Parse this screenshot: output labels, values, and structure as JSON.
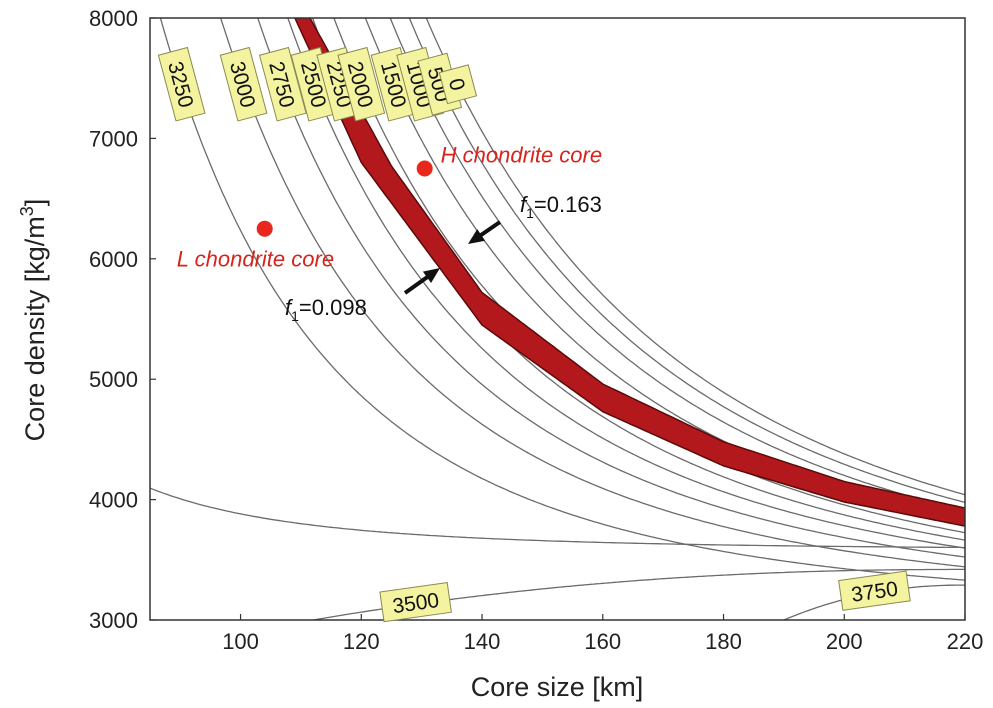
{
  "chart_data": {
    "type": "line",
    "title": "",
    "xlabel": "Core size [km]",
    "ylabel_main": "Core density [kg/m",
    "ylabel_sup": "3",
    "ylabel_end": "]",
    "xlim": [
      85,
      220
    ],
    "ylim": [
      3000,
      8000
    ],
    "xticks": [
      "100",
      "120",
      "140",
      "160",
      "180",
      "200",
      "220"
    ],
    "yticks": [
      "3000",
      "4000",
      "5000",
      "6000",
      "7000",
      "8000"
    ],
    "contours_upper": [
      {
        "label": "3250",
        "d0": 5.6
      },
      {
        "label": "3000",
        "d0": 7.85
      },
      {
        "label": "2750",
        "d0": 9.5
      },
      {
        "label": "2500",
        "d0": 11.0
      },
      {
        "label": "2250",
        "d0": 12.35
      },
      {
        "label": "2000",
        "d0": 13.6
      },
      {
        "label": "1500",
        "d0": 15.6
      },
      {
        "label": "1000",
        "d0": 17.3
      },
      {
        "label": "500",
        "d0": 18.7
      },
      {
        "label": "0",
        "d0": 20.0
      }
    ],
    "contours_lower": [
      {
        "label": "3500",
        "y_start": 3000,
        "y_end": 3420
      },
      {
        "label": "3750",
        "y_start": 3000,
        "y_end": 3290
      }
    ],
    "band": {
      "color": "#b3191c",
      "edge": "#5a0a0a",
      "inner": [
        [
          109,
          8000
        ],
        [
          120,
          6800
        ],
        [
          140,
          5450
        ],
        [
          160,
          4730
        ],
        [
          180,
          4280
        ],
        [
          200,
          3980
        ],
        [
          220,
          3780
        ]
      ],
      "outer": [
        [
          111.5,
          8000
        ],
        [
          125,
          6770
        ],
        [
          140,
          5720
        ],
        [
          160,
          4960
        ],
        [
          180,
          4480
        ],
        [
          200,
          4150
        ],
        [
          220,
          3930
        ]
      ]
    },
    "points": [
      {
        "label": "H chondrite core",
        "x": 130.5,
        "y": 6750,
        "color": "#e8281c"
      },
      {
        "label": "L chondrite core",
        "x": 104,
        "y": 6250,
        "color": "#e8281c"
      }
    ],
    "annotations": [
      {
        "f": "f",
        "sub": "1",
        "text": "=0.163"
      },
      {
        "f": "f",
        "sub": "1",
        "text": "=0.098"
      }
    ]
  }
}
